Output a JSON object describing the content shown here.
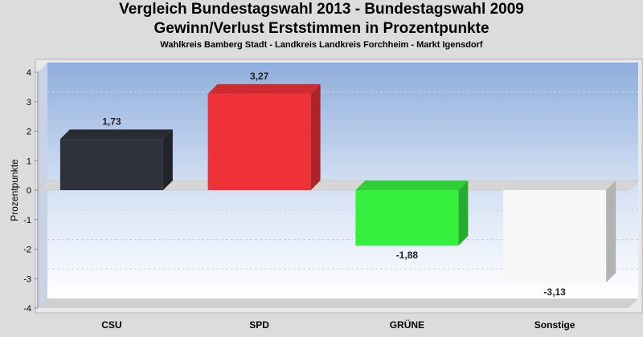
{
  "chart_data": {
    "type": "bar",
    "title": "Vergleich Bundestagswahl 2013 - Bundestagswahl 2009",
    "subtitle": "Gewinn/Verlust Erststimmen in Prozentpunkte",
    "subsubtitle": "Wahlkreis Bamberg Stadt - Landkreis Landkreis Forchheim - Markt Igensdorf",
    "ylabel": "Prozentpunkte",
    "xlabel": "",
    "ylim": [
      -4,
      4
    ],
    "yticks": [
      4,
      3,
      2,
      1,
      0,
      -1,
      -2,
      -3,
      -4
    ],
    "ytick_labels": [
      "4",
      "3",
      "2",
      "1",
      "0",
      "-1",
      "-2",
      "-3",
      "-4"
    ],
    "categories": [
      "CSU",
      "SPD",
      "GRÜNE",
      "Sonstige"
    ],
    "values": [
      1.73,
      3.27,
      -1.88,
      -3.13
    ],
    "value_labels": [
      "1,73",
      "3,27",
      "-1,88",
      "-3,13"
    ],
    "colors": [
      "#2e323a",
      "#ee3237",
      "#35f03f",
      "#f7f7f7"
    ],
    "grid": true,
    "style": "3d"
  }
}
